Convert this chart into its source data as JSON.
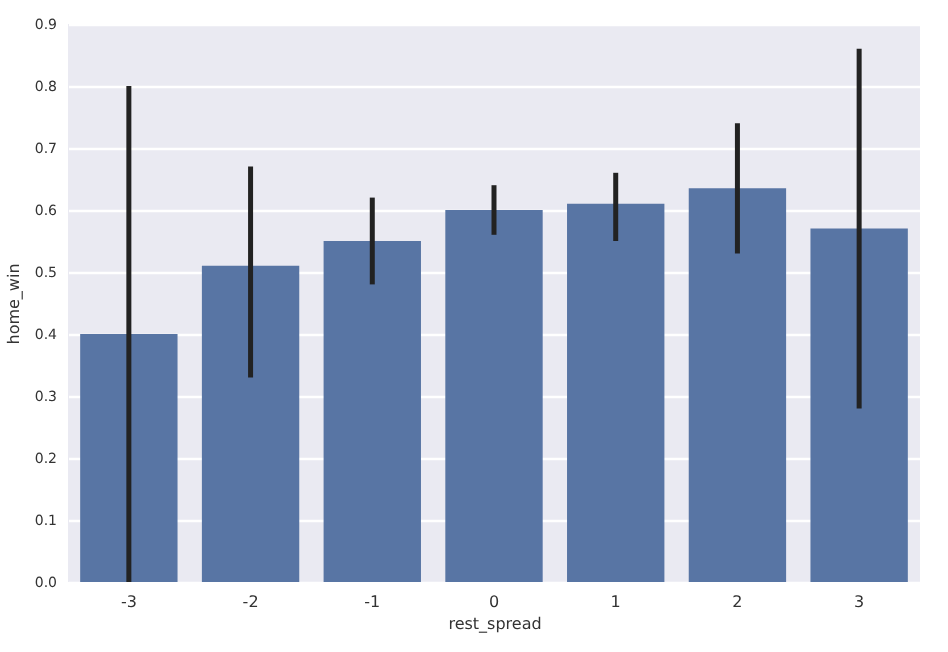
{
  "chart_data": {
    "type": "bar",
    "xlabel": "rest_spread",
    "ylabel": "home_win",
    "categories": [
      "-3",
      "-2",
      "-1",
      "0",
      "1",
      "2",
      "3"
    ],
    "values": [
      0.4,
      0.51,
      0.55,
      0.6,
      0.61,
      0.635,
      0.57
    ],
    "errors": [
      [
        0.0,
        0.8
      ],
      [
        0.33,
        0.67
      ],
      [
        0.48,
        0.62
      ],
      [
        0.56,
        0.64
      ],
      [
        0.55,
        0.66
      ],
      [
        0.53,
        0.74
      ],
      [
        0.28,
        0.86
      ]
    ],
    "color": "#5875a4",
    "ylim": [
      0,
      0.9
    ],
    "yticks": [
      {
        "value": 0,
        "label": "0.0"
      },
      0.1,
      0.2,
      0.3,
      0.4,
      0.5,
      0.6,
      0.7,
      0.8,
      0.9
    ],
    "grid": "y"
  }
}
